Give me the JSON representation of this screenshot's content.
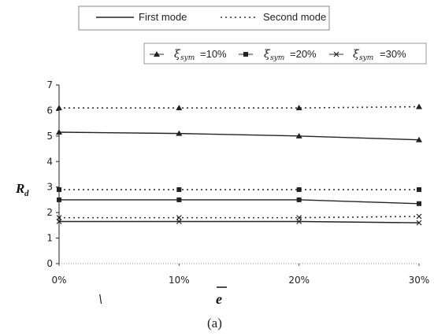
{
  "chart_data": {
    "type": "line",
    "categories": [
      "0%",
      "10%",
      "20%",
      "30%"
    ],
    "x": [
      0,
      10,
      20,
      30
    ],
    "ylim": [
      0,
      7
    ],
    "yticks": [
      "0",
      "1",
      "2",
      "3",
      "4",
      "5",
      "6",
      "7"
    ],
    "ylabel": "R",
    "ylabel_sub": "d",
    "xlabel": "e",
    "caption": "(a)",
    "legend_modes": [
      {
        "label": "First mode",
        "style": "solid"
      },
      {
        "label": "Second mode",
        "style": "dotted"
      }
    ],
    "legend_damping": [
      {
        "symbol": "ξ",
        "sub": "sym",
        "text": "=10%",
        "marker": "triangle"
      },
      {
        "symbol": "ξ",
        "sub": "sym",
        "text": "=20%",
        "marker": "square"
      },
      {
        "symbol": "ξ",
        "sub": "sym",
        "text": "=30%",
        "marker": "x"
      }
    ],
    "series": [
      {
        "mode": "Second mode",
        "damping": "=10%",
        "style": "dotted",
        "marker": "triangle",
        "values": [
          6.1,
          6.1,
          6.1,
          6.15
        ]
      },
      {
        "mode": "First mode",
        "damping": "=10%",
        "style": "solid",
        "marker": "triangle",
        "values": [
          5.15,
          5.1,
          5.0,
          4.85
        ]
      },
      {
        "mode": "Second mode",
        "damping": "=20%",
        "style": "dotted",
        "marker": "square",
        "values": [
          2.9,
          2.9,
          2.9,
          2.9
        ]
      },
      {
        "mode": "First mode",
        "damping": "=20%",
        "style": "solid",
        "marker": "square",
        "values": [
          2.5,
          2.5,
          2.5,
          2.35
        ]
      },
      {
        "mode": "Second mode",
        "damping": "=30%",
        "style": "dotted",
        "marker": "x",
        "values": [
          1.8,
          1.8,
          1.8,
          1.85
        ]
      },
      {
        "mode": "First mode",
        "damping": "=30%",
        "style": "solid",
        "marker": "x",
        "values": [
          1.65,
          1.65,
          1.65,
          1.6
        ]
      }
    ]
  }
}
